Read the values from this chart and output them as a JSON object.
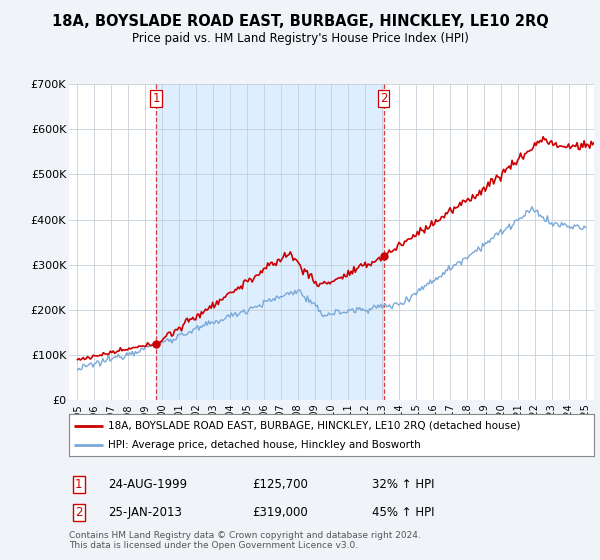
{
  "title": "18A, BOYSLADE ROAD EAST, BURBAGE, HINCKLEY, LE10 2RQ",
  "subtitle": "Price paid vs. HM Land Registry's House Price Index (HPI)",
  "red_label": "18A, BOYSLADE ROAD EAST, BURBAGE, HINCKLEY, LE10 2RQ (detached house)",
  "blue_label": "HPI: Average price, detached house, Hinckley and Bosworth",
  "footer": "Contains HM Land Registry data © Crown copyright and database right 2024.\nThis data is licensed under the Open Government Licence v3.0.",
  "annotation1_label": "1",
  "annotation1_date": "24-AUG-1999",
  "annotation1_price": "£125,700",
  "annotation1_hpi": "32% ↑ HPI",
  "annotation2_label": "2",
  "annotation2_date": "25-JAN-2013",
  "annotation2_price": "£319,000",
  "annotation2_hpi": "45% ↑ HPI",
  "red_color": "#cc0000",
  "blue_color": "#7aa8d8",
  "shade_color": "#ddeeff",
  "dashed_vline_color": "#cc0000",
  "ylim": [
    0,
    700000
  ],
  "yticks": [
    0,
    100000,
    200000,
    300000,
    400000,
    500000,
    600000,
    700000
  ],
  "ytick_labels": [
    "£0",
    "£100K",
    "£200K",
    "£300K",
    "£400K",
    "£500K",
    "£600K",
    "£700K"
  ],
  "xlim_start": 1994.5,
  "xlim_end": 2025.5,
  "xticks": [
    1995,
    1996,
    1997,
    1998,
    1999,
    2000,
    2001,
    2002,
    2003,
    2004,
    2005,
    2006,
    2007,
    2008,
    2009,
    2010,
    2011,
    2012,
    2013,
    2014,
    2015,
    2016,
    2017,
    2018,
    2019,
    2020,
    2021,
    2022,
    2023,
    2024,
    2025
  ],
  "sale1_x": 1999.646,
  "sale1_y": 125700,
  "sale2_x": 2013.073,
  "sale2_y": 319000,
  "background_color": "#f0f4f8",
  "plot_bg_color": "#ffffff"
}
